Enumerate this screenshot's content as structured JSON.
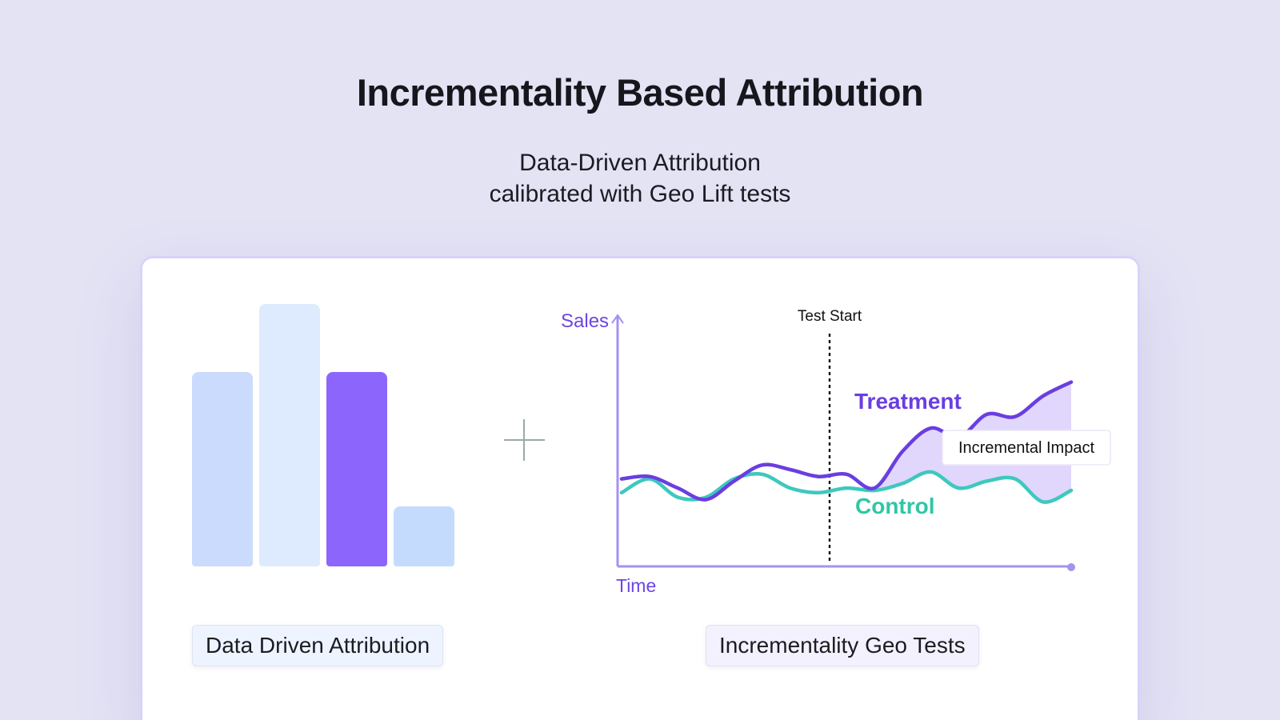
{
  "title": "Incrementality Based Attribution",
  "subtitle": {
    "line1": "Data-Driven Attribution",
    "line2": "calibrated with Geo Lift tests"
  },
  "left_panel": {
    "label": "Data Driven Attribution",
    "bars": [
      {
        "value": 0.74,
        "color": "#cadbfd",
        "highlight": false
      },
      {
        "value": 1.0,
        "color": "#deebfe",
        "highlight": false
      },
      {
        "value": 0.74,
        "color": "#8c66fc",
        "highlight": true
      },
      {
        "value": 0.23,
        "color": "#c4dbfe",
        "highlight": false
      }
    ]
  },
  "operator_icon": "plus-icon",
  "right_panel": {
    "label": "Incrementality Geo Tests",
    "chart_data": {
      "type": "line",
      "xlabel": "Time",
      "ylabel": "Sales",
      "annotations": [
        "Test Start",
        "Incremental Impact"
      ],
      "series": [
        {
          "name": "Treatment",
          "color": "#6a3ee0",
          "values": [
            0.38,
            0.39,
            0.34,
            0.29,
            0.37,
            0.44,
            0.42,
            0.39,
            0.4,
            0.34,
            0.5,
            0.6,
            0.56,
            0.66,
            0.65,
            0.74,
            0.8
          ]
        },
        {
          "name": "Control",
          "color": "#3ec8be",
          "values": [
            0.32,
            0.38,
            0.3,
            0.3,
            0.38,
            0.4,
            0.34,
            0.32,
            0.34,
            0.33,
            0.36,
            0.41,
            0.34,
            0.37,
            0.38,
            0.28,
            0.33
          ]
        }
      ],
      "test_start_index": 9,
      "colors": {
        "axis": "#a492ee",
        "axis_label": "#6d45e6",
        "treatment_label": "#6a3ee0",
        "control_label": "#2fc7a5",
        "impact_fill": "#dcd0fc"
      }
    }
  }
}
